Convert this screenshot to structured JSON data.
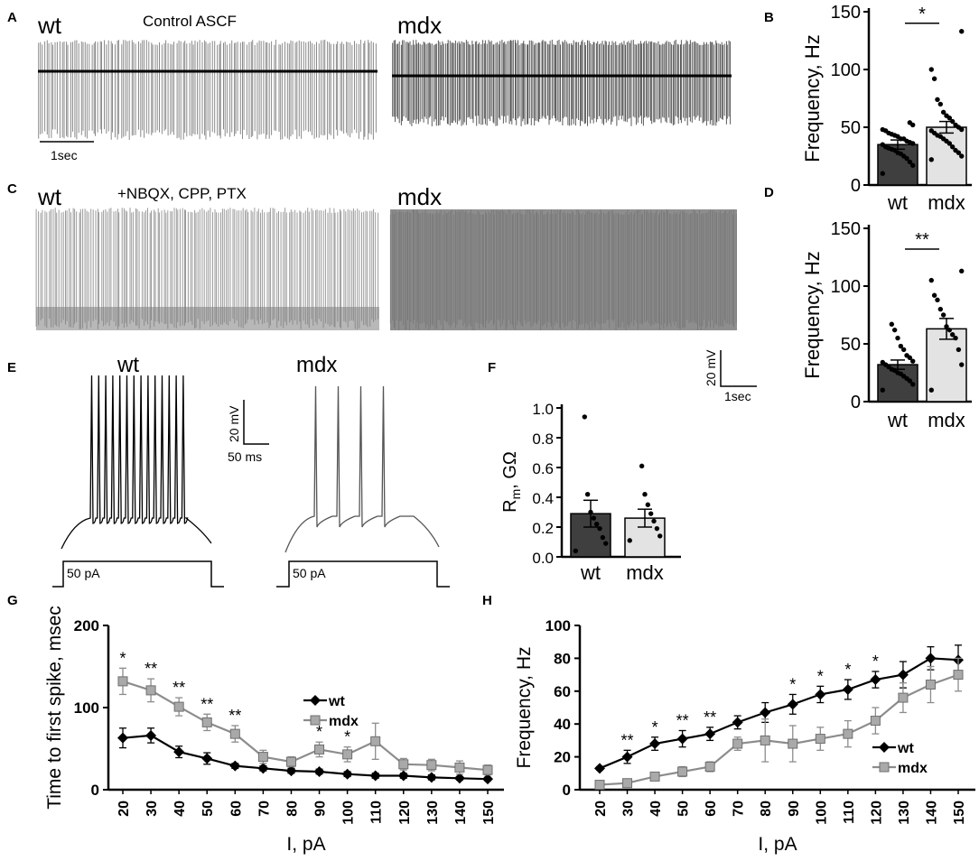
{
  "panels": {
    "A": {
      "letter": "A",
      "wt": "wt",
      "cond": "Control ASCF",
      "mdx": "mdx",
      "scale_time": "1sec"
    },
    "C": {
      "letter": "C",
      "wt": "wt",
      "cond": "+NBQX, CPP, PTX",
      "mdx": "mdx"
    },
    "CD_scale": {
      "v": "20 mV",
      "t": "1sec"
    },
    "E": {
      "letter": "E",
      "wt": "wt",
      "mdx": "mdx",
      "scale_v": "20 mV",
      "scale_t": "50 ms",
      "step_wt": "50 pA",
      "step_mdx": "50 pA"
    }
  },
  "colors": {
    "wt_bar": "#3f3f3f",
    "mdx_bar": "#e3e3e3",
    "wt_line": "#000000",
    "mdx_line": "#8c8c8c",
    "trace_wt": "#8a8a8a",
    "trace_mdx": "#595959"
  },
  "chart_data": [
    {
      "panel": "B",
      "type": "bar",
      "ylabel": "Frequency, Hz",
      "ylim": [
        0,
        150
      ],
      "yticks": [
        0,
        50,
        100,
        150
      ],
      "categories": [
        "wt",
        "mdx"
      ],
      "values": [
        35,
        50
      ],
      "sem": [
        4,
        5
      ],
      "significance": "*",
      "points": {
        "wt": [
          10,
          17,
          20,
          23,
          25,
          27,
          28,
          30,
          31,
          32,
          33,
          35,
          36,
          37,
          38,
          40,
          40,
          42,
          43,
          44,
          45,
          47,
          48,
          52,
          54
        ],
        "mdx": [
          22,
          25,
          28,
          30,
          33,
          36,
          38,
          40,
          42,
          43,
          45,
          47,
          48,
          50,
          52,
          55,
          58,
          60,
          63,
          70,
          74,
          92,
          100,
          133
        ]
      }
    },
    {
      "panel": "D",
      "type": "bar",
      "ylabel": "Frequency, Hz",
      "ylim": [
        0,
        150
      ],
      "yticks": [
        0,
        50,
        100,
        150
      ],
      "categories": [
        "wt",
        "mdx"
      ],
      "values": [
        32,
        63
      ],
      "sem": [
        4,
        9
      ],
      "significance": "**",
      "points": {
        "wt": [
          10,
          15,
          18,
          20,
          22,
          24,
          25,
          27,
          28,
          30,
          32,
          34,
          35,
          38,
          40,
          45,
          48,
          55,
          62,
          67
        ],
        "mdx": [
          10,
          32,
          45,
          55,
          58,
          62,
          65,
          75,
          80,
          88,
          92,
          105,
          113
        ]
      }
    },
    {
      "panel": "F",
      "type": "bar",
      "ylabel_main": "R",
      "ylabel_sub": "m",
      "ylabel_rest": ", GΩ",
      "ylim": [
        0,
        1.0
      ],
      "yticks": [
        0.0,
        0.2,
        0.4,
        0.6,
        0.8,
        1.0
      ],
      "categories": [
        "wt",
        "mdx"
      ],
      "values": [
        0.29,
        0.26
      ],
      "sem": [
        0.09,
        0.06
      ],
      "points": {
        "wt": [
          0.04,
          0.09,
          0.13,
          0.19,
          0.22,
          0.26,
          0.3,
          0.42,
          0.94
        ],
        "mdx": [
          0.11,
          0.14,
          0.19,
          0.24,
          0.29,
          0.35,
          0.42,
          0.61
        ]
      }
    },
    {
      "panel": "G",
      "type": "line",
      "xlabel": "I, pA",
      "ylabel": "Time to first spike, msec",
      "ylim": [
        0,
        200
      ],
      "yticks": [
        0,
        100,
        200
      ],
      "x": [
        20,
        30,
        40,
        50,
        60,
        70,
        80,
        90,
        100,
        110,
        120,
        130,
        140,
        150
      ],
      "series": [
        {
          "name": "wt",
          "values": [
            63,
            66,
            46,
            38,
            29,
            26,
            23,
            22,
            19,
            17,
            17,
            15,
            14,
            13
          ],
          "err": [
            12,
            9,
            7,
            7,
            3,
            3,
            3,
            3,
            3,
            3,
            3,
            3,
            2,
            2
          ]
        },
        {
          "name": "mdx",
          "values": [
            132,
            121,
            101,
            82,
            68,
            40,
            34,
            49,
            43,
            59,
            31,
            30,
            27,
            24
          ],
          "err": [
            16,
            14,
            11,
            10,
            10,
            8,
            6,
            9,
            9,
            22,
            7,
            7,
            8,
            6
          ]
        }
      ],
      "annotations": [
        {
          "x": 20,
          "text": "*"
        },
        {
          "x": 30,
          "text": "**"
        },
        {
          "x": 40,
          "text": "**"
        },
        {
          "x": 50,
          "text": "**"
        },
        {
          "x": 60,
          "text": "**"
        },
        {
          "x": 90,
          "text": "*"
        },
        {
          "x": 100,
          "text": "*"
        }
      ]
    },
    {
      "panel": "H",
      "type": "line",
      "xlabel": "I, pA",
      "ylabel": "Frequency, Hz",
      "ylim": [
        0,
        100
      ],
      "yticks": [
        0,
        20,
        40,
        60,
        80,
        100
      ],
      "x": [
        20,
        30,
        40,
        50,
        60,
        70,
        80,
        90,
        100,
        110,
        120,
        130,
        140,
        150
      ],
      "series": [
        {
          "name": "wt",
          "values": [
            13,
            20,
            28,
            31,
            34,
            41,
            47,
            52,
            58,
            61,
            67,
            70,
            80,
            79
          ],
          "err": [
            1,
            4,
            4,
            5,
            4,
            4,
            6,
            6,
            5,
            6,
            5,
            8,
            7,
            9
          ]
        },
        {
          "name": "mdx",
          "values": [
            3,
            4,
            8,
            11,
            14,
            28,
            30,
            28,
            31,
            34,
            42,
            56,
            64,
            70
          ],
          "err": [
            2,
            1,
            1,
            3,
            3,
            4,
            13,
            11,
            7,
            8,
            8,
            9,
            11,
            10
          ]
        }
      ],
      "annotations": [
        {
          "x": 30,
          "text": "**"
        },
        {
          "x": 40,
          "text": "*"
        },
        {
          "x": 50,
          "text": "**"
        },
        {
          "x": 60,
          "text": "**"
        },
        {
          "x": 90,
          "text": "*"
        },
        {
          "x": 100,
          "text": "*"
        },
        {
          "x": 110,
          "text": "*"
        },
        {
          "x": 120,
          "text": "*"
        }
      ]
    }
  ]
}
